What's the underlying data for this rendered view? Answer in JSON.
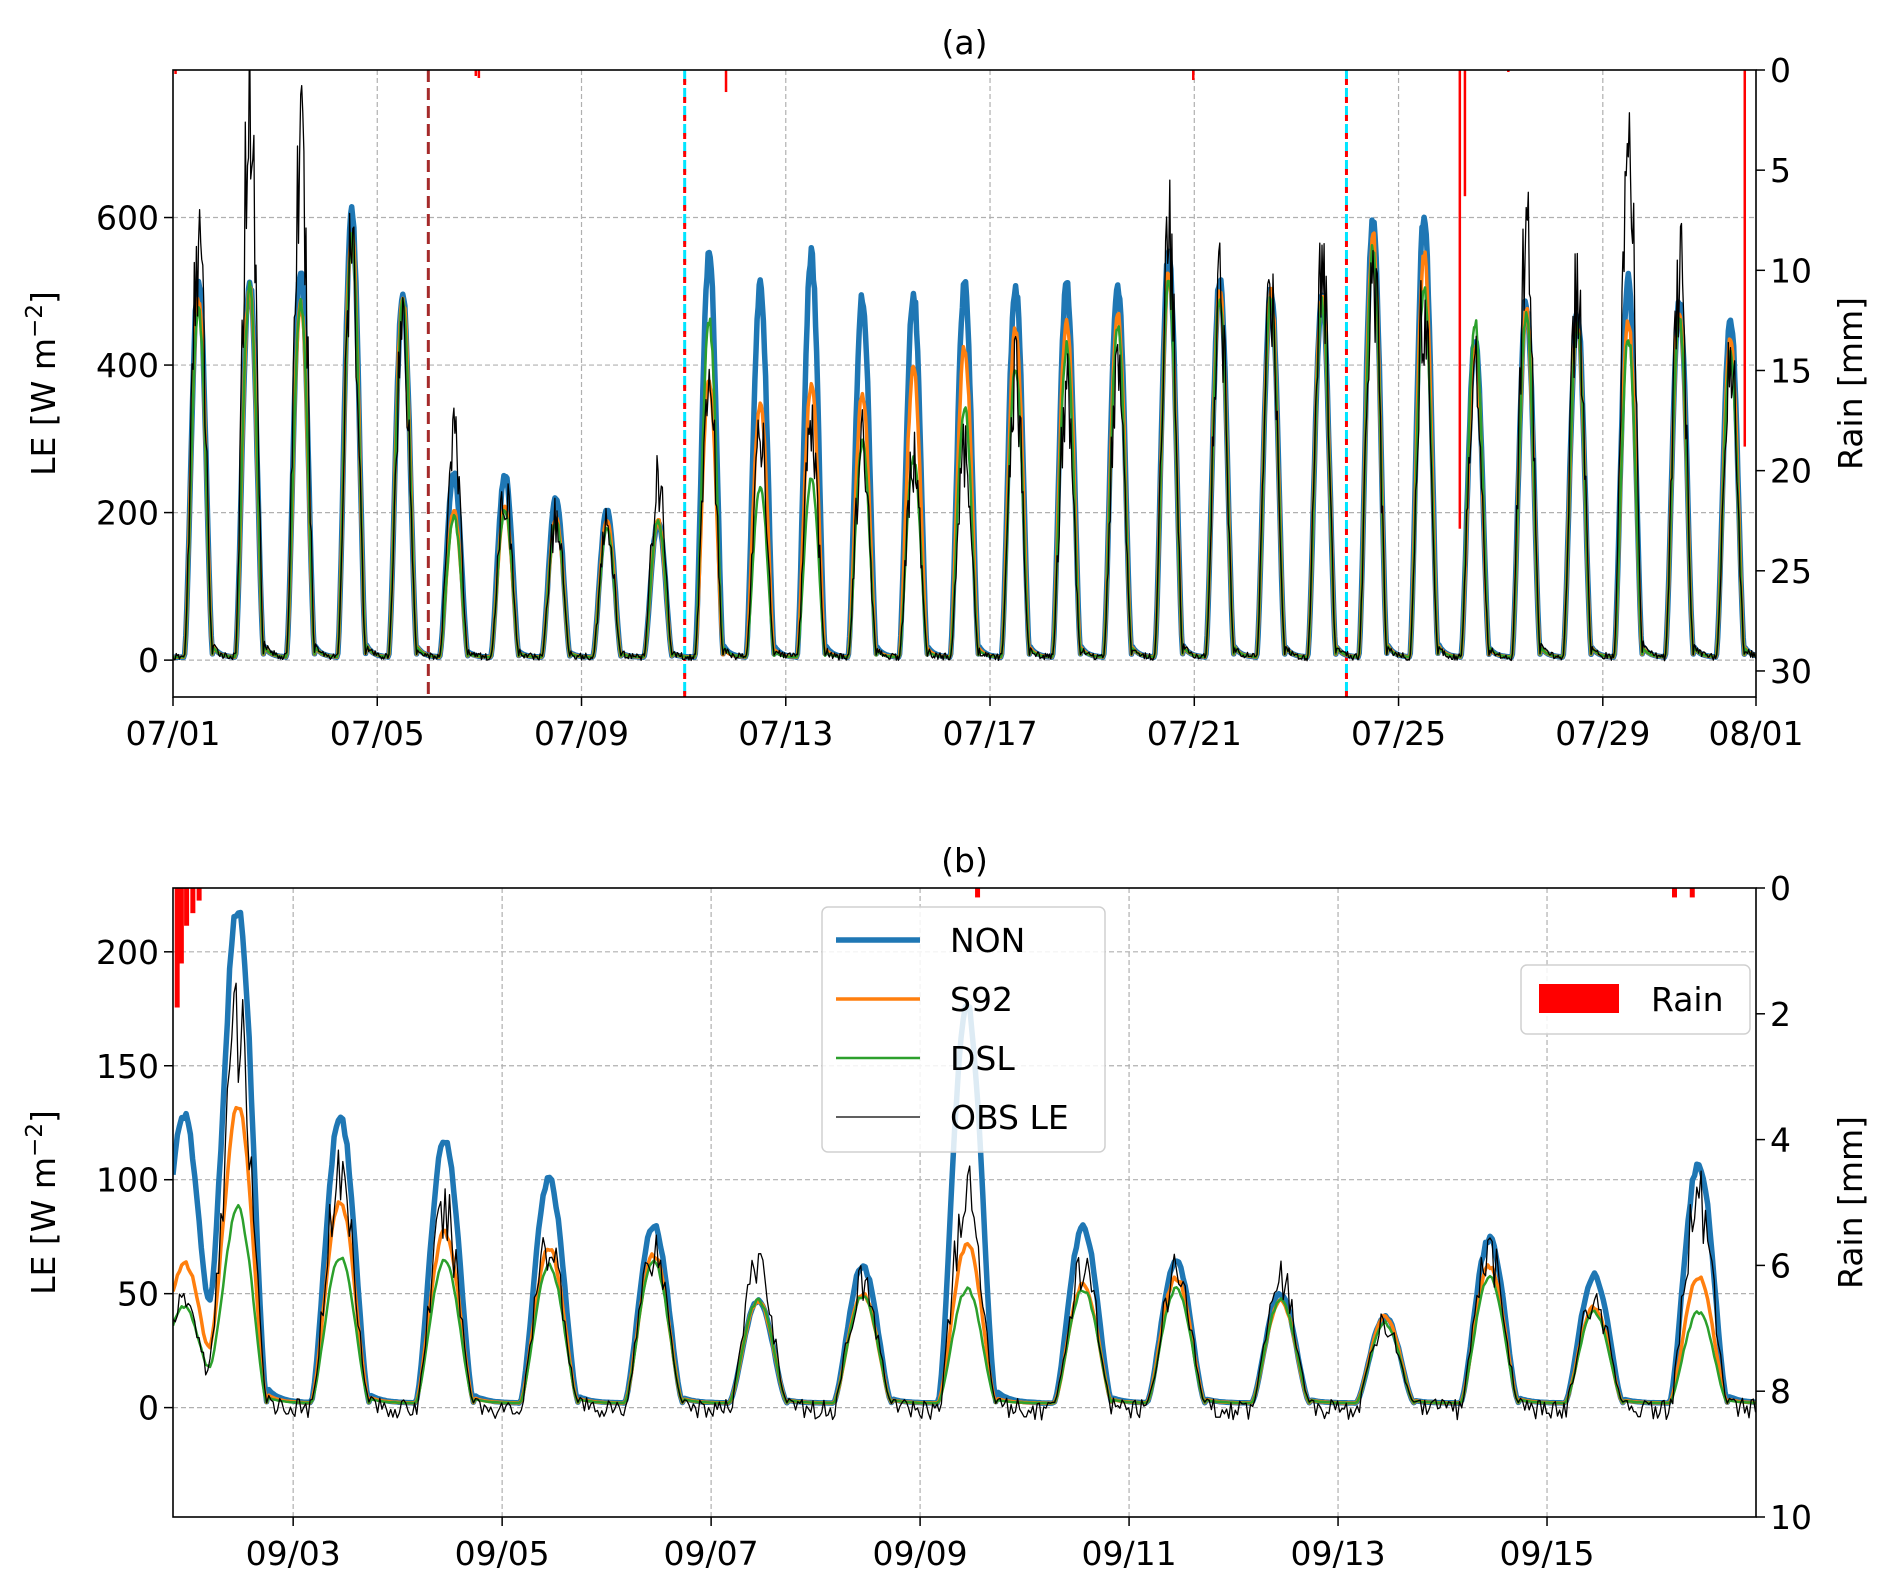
{
  "chart_data": [
    {
      "type": "line",
      "title": "(a)",
      "ylabel": "LE [W m$^{-2}$]",
      "ylabel_main": "LE [W m",
      "ylabel_sup": "−2",
      "ylabel_close": "]",
      "y2label": "Rain [mm]",
      "x_unit": "days since 07/01 00:00",
      "xlim": [
        0,
        31
      ],
      "ylim": [
        -50,
        800
      ],
      "y2lim": [
        31.3,
        0
      ],
      "grid": true,
      "xticks": [
        0,
        4,
        8,
        12,
        16,
        20,
        24,
        28,
        31
      ],
      "xtick_labels": [
        "07/01",
        "07/05",
        "07/09",
        "07/13",
        "07/17",
        "07/21",
        "07/25",
        "07/29",
        "08/01"
      ],
      "yticks": [
        0,
        200,
        400,
        600
      ],
      "y2ticks": [
        0,
        5,
        10,
        15,
        20,
        25,
        30
      ],
      "peak_times": [
        0.5,
        1.5,
        2.5,
        3.5,
        4.5,
        5.5,
        6.5,
        7.5,
        8.5,
        9.5,
        10.5,
        11.5,
        12.5,
        13.5,
        14.5,
        15.5,
        16.5,
        17.5,
        18.5,
        19.5,
        20.5,
        21.5,
        22.5,
        23.5,
        24.5,
        25.5,
        26.5,
        27.5,
        28.5,
        29.5,
        30.5
      ],
      "series": [
        {
          "name": "NON",
          "color": "#1f77b4",
          "peaks": [
            510,
            510,
            525,
            600,
            490,
            250,
            250,
            215,
            200,
            185,
            545,
            505,
            545,
            490,
            495,
            505,
            505,
            505,
            505,
            545,
            510,
            500,
            490,
            600,
            600,
            430,
            480,
            465,
            510,
            485,
            460
          ]
        },
        {
          "name": "S92",
          "color": "#ff7f0e",
          "peaks": [
            490,
            500,
            480,
            580,
            490,
            200,
            205,
            190,
            185,
            185,
            375,
            345,
            370,
            355,
            390,
            420,
            445,
            460,
            470,
            520,
            495,
            495,
            490,
            570,
            545,
            420,
            470,
            455,
            455,
            470,
            430
          ]
        },
        {
          "name": "DSL",
          "color": "#2ca02c",
          "peaks": [
            470,
            500,
            480,
            570,
            480,
            190,
            200,
            185,
            175,
            185,
            455,
            230,
            240,
            290,
            270,
            340,
            390,
            420,
            445,
            510,
            490,
            485,
            480,
            555,
            500,
            455,
            465,
            450,
            435,
            460,
            410
          ]
        },
        {
          "name": "OBS LE",
          "color": "#000000",
          "peaks": [
            560,
            760,
            680,
            540,
            450,
            300,
            225,
            185,
            175,
            240,
            380,
            305,
            300,
            290,
            265,
            280,
            370,
            360,
            400,
            565,
            500,
            500,
            535,
            540,
            480,
            400,
            560,
            500,
            700,
            525,
            410
          ]
        }
      ],
      "rain": {
        "name": "Rain",
        "color": "#ff0000",
        "events": [
          {
            "t": 0.05,
            "mm": 0.2
          },
          {
            "t": 5.93,
            "mm": 0.3
          },
          {
            "t": 5.99,
            "mm": 0.4
          },
          {
            "t": 10.83,
            "mm": 1.1
          },
          {
            "t": 19.98,
            "mm": 0.5
          },
          {
            "t": 25.2,
            "mm": 22.9
          },
          {
            "t": 25.3,
            "mm": 6.3
          },
          {
            "t": 26.15,
            "mm": 0.1
          },
          {
            "t": 30.78,
            "mm": 18.8
          }
        ]
      },
      "markers": [
        {
          "t": 5.0,
          "color": "#a52a2a",
          "style": "dashed"
        },
        {
          "t": 10.02,
          "color": "#ff0000",
          "color2": "#00e5ff",
          "style": "dashed"
        },
        {
          "t": 22.98,
          "color": "#ff0000",
          "color2": "#00e5ff",
          "style": "dashed"
        }
      ]
    },
    {
      "type": "line",
      "title": "(b)",
      "ylabel": "LE [W m$^{-2}$]",
      "ylabel_main": "LE [W m",
      "ylabel_sup": "−2",
      "ylabel_close": "]",
      "y2label": "Rain [mm]",
      "x_unit": "days since 09/01 00:00",
      "xlim": [
        0.85,
        16.0
      ],
      "ylim": [
        -48,
        228
      ],
      "y2lim": [
        10,
        0
      ],
      "grid": true,
      "xticks": [
        2,
        4,
        6,
        8,
        10,
        12,
        14
      ],
      "xtick_labels": [
        "09/03",
        "09/05",
        "09/07",
        "09/09",
        "09/11",
        "09/13",
        "09/15"
      ],
      "yticks": [
        0,
        50,
        100,
        150,
        200
      ],
      "y2ticks": [
        0,
        2,
        4,
        6,
        8,
        10
      ],
      "peak_times": [
        0.9,
        1.1,
        1.47,
        2.45,
        3.45,
        4.45,
        5.45,
        6.45,
        7.45,
        8.45,
        9.56,
        10.45,
        11.45,
        12.45,
        13.45,
        14.45,
        15.45
      ],
      "series": [
        {
          "name": "NON",
          "color": "#1f77b4",
          "peaks": [
            105,
            52,
            217,
            125,
            115,
            98,
            78,
            45,
            60,
            175,
            77,
            62,
            48,
            38,
            72,
            56,
            105
          ]
        },
        {
          "name": "S92",
          "color": "#ff7f0e",
          "peaks": [
            50,
            28,
            130,
            88,
            75,
            68,
            65,
            45,
            48,
            70,
            52,
            55,
            45,
            38,
            60,
            42,
            55
          ]
        },
        {
          "name": "DSL",
          "color": "#2ca02c",
          "peaks": [
            35,
            18,
            85,
            64,
            62,
            60,
            62,
            45,
            47,
            50,
            50,
            50,
            45,
            35,
            55,
            40,
            40
          ]
        },
        {
          "name": "OBS LE",
          "color": "#000000",
          "peaks": [
            40,
            20,
            163,
            100,
            82,
            70,
            68,
            60,
            52,
            90,
            58,
            57,
            55,
            35,
            65,
            45,
            88
          ]
        }
      ],
      "rain": {
        "name": "Rain",
        "color": "#ff0000",
        "events": [
          {
            "t": 0.89,
            "mm": 1.9
          },
          {
            "t": 0.93,
            "mm": 1.2
          },
          {
            "t": 0.98,
            "mm": 0.6
          },
          {
            "t": 1.04,
            "mm": 0.4
          },
          {
            "t": 1.1,
            "mm": 0.2
          },
          {
            "t": 8.55,
            "mm": 0.15
          },
          {
            "t": 15.22,
            "mm": 0.15
          },
          {
            "t": 15.39,
            "mm": 0.15
          }
        ]
      },
      "legend": {
        "entries": [
          "NON",
          "S92",
          "DSL",
          "OBS LE"
        ],
        "placement": "upper-center"
      },
      "rain_legend": {
        "label": "Rain",
        "placement": "upper-right"
      }
    }
  ]
}
